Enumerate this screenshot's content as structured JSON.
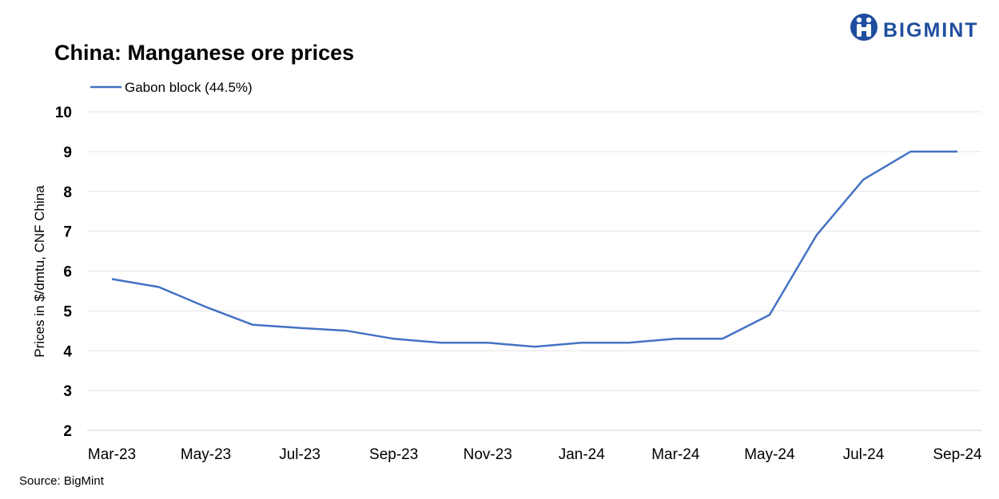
{
  "brand": {
    "name": "BIGMINT",
    "color": "#1f4e9e"
  },
  "chart_data": {
    "type": "line",
    "title": "China: Manganese ore prices",
    "ylabel": "Prices in $/dmtu, CNF China",
    "xlabel": "",
    "source": "Source:  BigMint",
    "ylim": [
      2,
      10
    ],
    "yticks": [
      2,
      3,
      4,
      5,
      6,
      7,
      8,
      9,
      10
    ],
    "grid": true,
    "legend_position": "top-left",
    "x": [
      "Mar-23",
      "Apr-23",
      "May-23",
      "Jun-23",
      "Jul-23",
      "Aug-23",
      "Sep-23",
      "Oct-23",
      "Nov-23",
      "Dec-23",
      "Jan-24",
      "Feb-24",
      "Mar-24",
      "Apr-24",
      "May-24",
      "Jun-24",
      "Jul-24",
      "Aug-24",
      "Sep-24"
    ],
    "x_tick_labels": [
      "Mar-23",
      "",
      "May-23",
      "",
      "Jul-23",
      "",
      "Sep-23",
      "",
      "Nov-23",
      "",
      "Jan-24",
      "",
      "Mar-24",
      "",
      "May-24",
      "",
      "Jul-24",
      "",
      "Sep-24"
    ],
    "series": [
      {
        "name": "Gabon block (44.5%)",
        "color": "#4472c4",
        "values": [
          5.8,
          5.6,
          5.1,
          4.65,
          4.57,
          4.5,
          4.3,
          4.2,
          4.2,
          4.1,
          4.2,
          4.2,
          4.3,
          4.3,
          4.9,
          6.9,
          8.3,
          9.0,
          9.0
        ]
      }
    ]
  }
}
